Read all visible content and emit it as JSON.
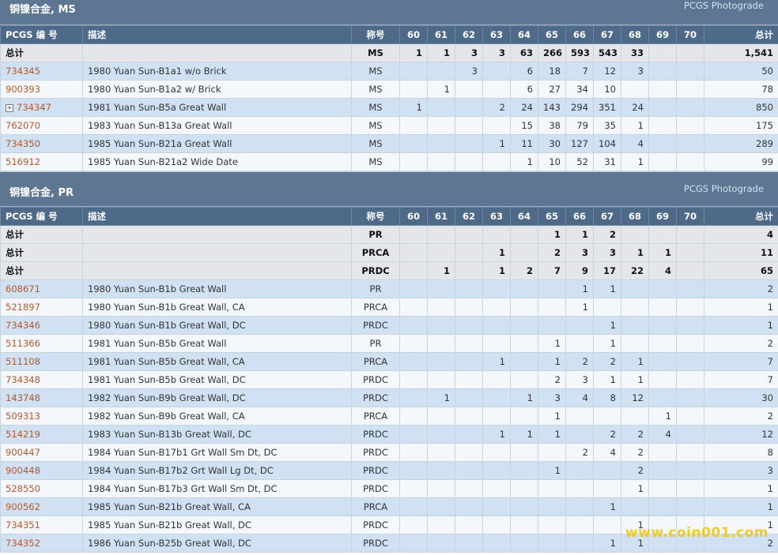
{
  "colors": {
    "header_bg": "#5d7692",
    "th_bg": "#4f6a89",
    "odd_row": "#cfe1f3",
    "even_row": "#f4f7fb",
    "code_link": "#b5582b",
    "watermark": "#f5c400"
  },
  "columns": {
    "code": "PCGS 编 号",
    "desc": "描述",
    "designation": "称号",
    "grades": [
      "60",
      "61",
      "62",
      "63",
      "64",
      "65",
      "66",
      "67",
      "68",
      "69",
      "70"
    ],
    "total": "总计"
  },
  "ms_section": {
    "title": "铜镍合金, MS",
    "photograde": "PCGS Photograde",
    "rows": [
      {
        "type": "total",
        "code": "总计",
        "desc": "",
        "designation": "MS",
        "grades": [
          "1",
          "1",
          "3",
          "3",
          "63",
          "266",
          "593",
          "543",
          "33",
          "",
          ""
        ],
        "total": "1,541"
      },
      {
        "code": "734345",
        "desc": "1980 Yuan Sun-B1a1 w/o Brick",
        "designation": "MS",
        "grades": [
          "",
          "",
          "3",
          "",
          "6",
          "18",
          "7",
          "12",
          "3",
          "",
          ""
        ],
        "total": "50"
      },
      {
        "code": "900393",
        "desc": "1980 Yuan Sun-B1a2 w/ Brick",
        "designation": "MS",
        "grades": [
          "",
          "1",
          "",
          "",
          "6",
          "27",
          "34",
          "10",
          "",
          "",
          ""
        ],
        "total": "78"
      },
      {
        "code": "734347",
        "expand": true,
        "desc": "1981 Yuan Sun-B5a Great Wall",
        "designation": "MS",
        "grades": [
          "1",
          "",
          "",
          "2",
          "24",
          "143",
          "294",
          "351",
          "24",
          "",
          ""
        ],
        "total": "850"
      },
      {
        "code": "762070",
        "desc": "1983 Yuan Sun-B13a Great Wall",
        "designation": "MS",
        "grades": [
          "",
          "",
          "",
          "",
          "15",
          "38",
          "79",
          "35",
          "1",
          "",
          ""
        ],
        "total": "175"
      },
      {
        "code": "734350",
        "desc": "1985 Yuan Sun-B21a Great Wall",
        "designation": "MS",
        "grades": [
          "",
          "",
          "",
          "1",
          "11",
          "30",
          "127",
          "104",
          "4",
          "",
          ""
        ],
        "total": "289"
      },
      {
        "code": "516912",
        "desc": "1985 Yuan Sun-B21a2 Wide Date",
        "designation": "MS",
        "grades": [
          "",
          "",
          "",
          "",
          "1",
          "10",
          "52",
          "31",
          "1",
          "",
          ""
        ],
        "total": "99"
      }
    ]
  },
  "pr_section": {
    "title": "铜镍合金, PR",
    "photograde": "PCGS Photograde",
    "rows": [
      {
        "type": "total",
        "code": "总计",
        "desc": "",
        "designation": "PR",
        "grades": [
          "",
          "",
          "",
          "",
          "",
          "1",
          "1",
          "2",
          "",
          "",
          ""
        ],
        "total": "4"
      },
      {
        "type": "total",
        "code": "总计",
        "desc": "",
        "designation": "PRCA",
        "grades": [
          "",
          "",
          "",
          "1",
          "",
          "2",
          "3",
          "3",
          "1",
          "1",
          ""
        ],
        "total": "11"
      },
      {
        "type": "total",
        "code": "总计",
        "desc": "",
        "designation": "PRDC",
        "grades": [
          "",
          "1",
          "",
          "1",
          "2",
          "7",
          "9",
          "17",
          "22",
          "4",
          ""
        ],
        "total": "65"
      },
      {
        "code": "608671",
        "desc": "1980 Yuan Sun-B1b Great Wall",
        "designation": "PR",
        "grades": [
          "",
          "",
          "",
          "",
          "",
          "",
          "1",
          "1",
          "",
          "",
          ""
        ],
        "total": "2"
      },
      {
        "code": "521897",
        "desc": "1980 Yuan Sun-B1b Great Wall, CA",
        "designation": "PRCA",
        "grades": [
          "",
          "",
          "",
          "",
          "",
          "",
          "1",
          "",
          "",
          "",
          ""
        ],
        "total": "1"
      },
      {
        "code": "734346",
        "desc": "1980 Yuan Sun-B1b Great Wall, DC",
        "designation": "PRDC",
        "grades": [
          "",
          "",
          "",
          "",
          "",
          "",
          "",
          "1",
          "",
          "",
          ""
        ],
        "total": "1"
      },
      {
        "code": "511366",
        "desc": "1981 Yuan Sun-B5b Great Wall",
        "designation": "PR",
        "grades": [
          "",
          "",
          "",
          "",
          "",
          "1",
          "",
          "1",
          "",
          "",
          ""
        ],
        "total": "2"
      },
      {
        "code": "511108",
        "desc": "1981 Yuan Sun-B5b Great Wall, CA",
        "designation": "PRCA",
        "grades": [
          "",
          "",
          "",
          "1",
          "",
          "1",
          "2",
          "2",
          "1",
          "",
          ""
        ],
        "total": "7"
      },
      {
        "code": "734348",
        "desc": "1981 Yuan Sun-B5b Great Wall, DC",
        "designation": "PRDC",
        "grades": [
          "",
          "",
          "",
          "",
          "",
          "2",
          "3",
          "1",
          "1",
          "",
          ""
        ],
        "total": "7"
      },
      {
        "code": "143748",
        "desc": "1982 Yuan Sun-B9b Great Wall, DC",
        "designation": "PRDC",
        "grades": [
          "",
          "1",
          "",
          "",
          "1",
          "3",
          "4",
          "8",
          "12",
          "",
          ""
        ],
        "total": "30"
      },
      {
        "code": "509313",
        "desc": "1982 Yuan Sun-B9b Great Wall, CA",
        "designation": "PRCA",
        "grades": [
          "",
          "",
          "",
          "",
          "",
          "1",
          "",
          "",
          "",
          "1",
          ""
        ],
        "total": "2"
      },
      {
        "code": "514219",
        "desc": "1983 Yuan Sun-B13b Great Wall, DC",
        "designation": "PRDC",
        "grades": [
          "",
          "",
          "",
          "1",
          "1",
          "1",
          "",
          "2",
          "2",
          "4",
          ""
        ],
        "total": "12"
      },
      {
        "code": "900447",
        "desc": "1984 Yuan Sun-B17b1 Grt Wall Sm Dt, DC",
        "designation": "PRDC",
        "grades": [
          "",
          "",
          "",
          "",
          "",
          "",
          "2",
          "4",
          "2",
          "",
          ""
        ],
        "total": "8"
      },
      {
        "code": "900448",
        "desc": "1984 Yuan Sun-B17b2 Grt Wall Lg Dt, DC",
        "designation": "PRDC",
        "grades": [
          "",
          "",
          "",
          "",
          "",
          "1",
          "",
          "",
          "2",
          "",
          ""
        ],
        "total": "3"
      },
      {
        "code": "528550",
        "desc": "1984 Yuan Sun-B17b3 Grt Wall Sm Dt, DC",
        "designation": "PRDC",
        "grades": [
          "",
          "",
          "",
          "",
          "",
          "",
          "",
          "",
          "1",
          "",
          ""
        ],
        "total": "1"
      },
      {
        "code": "900562",
        "desc": "1985 Yuan Sun-B21b Great Wall, CA",
        "designation": "PRCA",
        "grades": [
          "",
          "",
          "",
          "",
          "",
          "",
          "",
          "1",
          "",
          "",
          ""
        ],
        "total": "1"
      },
      {
        "code": "734351",
        "desc": "1985 Yuan Sun-B21b Great Wall, DC",
        "designation": "PRDC",
        "grades": [
          "",
          "",
          "",
          "",
          "",
          "",
          "",
          "",
          "1",
          "",
          ""
        ],
        "total": "1"
      },
      {
        "code": "734352",
        "desc": "1986 Yuan Sun-B25b Great Wall, DC",
        "designation": "PRDC",
        "grades": [
          "",
          "",
          "",
          "",
          "",
          "",
          "",
          "1",
          "1",
          "",
          ""
        ],
        "total": "2"
      }
    ]
  },
  "watermark": "www.coin001.com"
}
